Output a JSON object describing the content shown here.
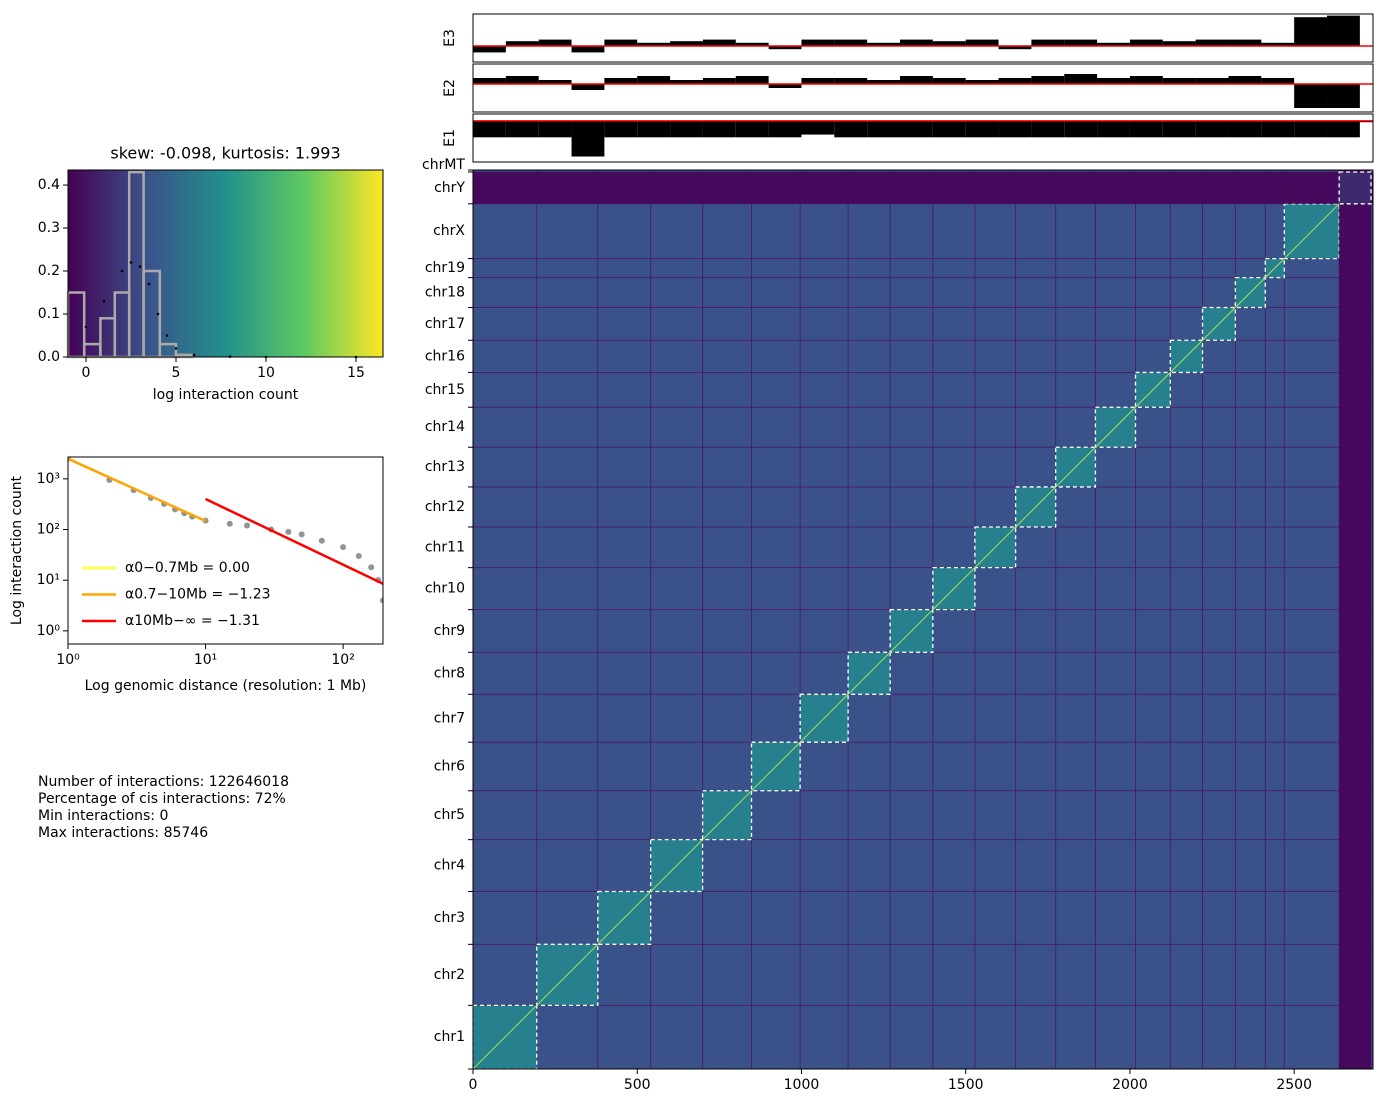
{
  "chart_data": [
    {
      "type": "histogram",
      "title": "skew: -0.098, kurtosis: 1.993",
      "xlabel": "log interaction count",
      "bins": [
        -1,
        -0.1,
        0.8,
        1.6,
        2.4,
        3.2,
        4.1,
        5.0,
        5.9
      ],
      "counts": [
        0.15,
        0.03,
        0.09,
        0.15,
        0.43,
        0.2,
        0.03,
        0.005
      ],
      "color": "#aaaaaa",
      "curve": {
        "x": [
          0,
          1,
          2,
          2.5,
          3,
          3.5,
          4,
          4.5,
          5,
          6,
          8,
          10,
          15
        ],
        "y": [
          0.07,
          0.13,
          0.2,
          0.22,
          0.21,
          0.17,
          0.1,
          0.05,
          0.02,
          0.005,
          0.001,
          0,
          0
        ],
        "color": "#000000"
      },
      "xlim": [
        -1,
        16.5
      ],
      "ylim": [
        0,
        0.435
      ],
      "xticks": [
        0,
        5,
        10,
        15
      ],
      "yticks": [
        {
          "value": 0,
          "label": "0.0"
        },
        0.1,
        0.2,
        0.3,
        0.4
      ]
    },
    {
      "type": "decay",
      "xlabel": "Log genomic distance (resolution: 1 Mb)",
      "ylabel": "Log interaction count",
      "xscale": "log",
      "yscale": "log",
      "xlim": [
        1,
        195
      ],
      "ylim": [
        0.55,
        2700
      ],
      "xticks": [
        {
          "value": 1,
          "label": "10⁰"
        },
        {
          "value": 10,
          "label": "10¹"
        },
        {
          "value": 100,
          "label": "10²"
        }
      ],
      "yticks": [
        {
          "value": 1,
          "label": "10⁰"
        },
        {
          "value": 10,
          "label": "10¹"
        },
        {
          "value": 100,
          "label": "10²"
        },
        {
          "value": 1000,
          "label": "10³"
        }
      ],
      "points": {
        "color": "#666666",
        "x": [
          1,
          2,
          3,
          4,
          5,
          6,
          7,
          8,
          10,
          15,
          20,
          30,
          40,
          50,
          70,
          100,
          130,
          160,
          180,
          195
        ],
        "y": [
          2500,
          950,
          600,
          420,
          320,
          250,
          210,
          180,
          150,
          130,
          120,
          100,
          90,
          80,
          60,
          45,
          30,
          18,
          10,
          4
        ]
      },
      "series": [
        {
          "name": "α0−0.7Mb = 0.00",
          "color": "#ffff33",
          "x": [],
          "values": []
        },
        {
          "name": "α0.7−10Mb = −1.23",
          "color": "#ffa500",
          "x": [
            1,
            10
          ],
          "values": [
            2500,
            147
          ]
        },
        {
          "name": "α10Mb−∞ = −1.31",
          "color": "#ff0000",
          "x": [
            10,
            195
          ],
          "values": [
            400,
            8.5
          ]
        }
      ]
    },
    {
      "type": "heatmap",
      "categories": [
        "chr1",
        "chr2",
        "chr3",
        "chr4",
        "chr5",
        "chr6",
        "chr7",
        "chr8",
        "chr9",
        "chr10",
        "chr11",
        "chr12",
        "chr13",
        "chr14",
        "chr15",
        "chr16",
        "chr17",
        "chr18",
        "chr19",
        "chrX",
        "chrY",
        "chrMT"
      ],
      "boundaries": [
        0,
        194,
        380,
        541,
        699,
        848,
        996,
        1142,
        1270,
        1400,
        1528,
        1652,
        1774,
        1895,
        2017,
        2123,
        2221,
        2321,
        2412,
        2470,
        2637,
        2734,
        2740
      ],
      "xlim": [
        0,
        2740
      ],
      "xticks": [
        0,
        500,
        1000,
        1500,
        2000,
        2500
      ]
    },
    {
      "type": "track",
      "label": "E3",
      "xlim": [
        0,
        2740
      ],
      "ylim": [
        -0.5,
        1
      ],
      "color": "#000000",
      "x": [
        0,
        100,
        200,
        300,
        400,
        500,
        600,
        700,
        800,
        900,
        1000,
        1100,
        1200,
        1300,
        1400,
        1500,
        1600,
        1700,
        1800,
        1900,
        2000,
        2100,
        2200,
        2300,
        2400,
        2500,
        2600,
        2700
      ],
      "values": [
        -0.2,
        0.15,
        0.2,
        -0.2,
        0.2,
        0.1,
        0.15,
        0.2,
        0.1,
        -0.1,
        0.2,
        0.2,
        0.1,
        0.2,
        0.15,
        0.2,
        -0.1,
        0.2,
        0.2,
        0.1,
        0.2,
        0.15,
        0.2,
        0.2,
        0.1,
        0.9,
        0.95,
        0
      ]
    },
    {
      "type": "track",
      "label": "E2",
      "xlim": [
        0,
        2740
      ],
      "ylim": [
        -1.4,
        1
      ],
      "color": "#000000",
      "x": [
        0,
        100,
        200,
        300,
        400,
        500,
        600,
        700,
        800,
        900,
        1000,
        1100,
        1200,
        1300,
        1400,
        1500,
        1600,
        1700,
        1800,
        1900,
        2000,
        2100,
        2200,
        2300,
        2400,
        2500,
        2600,
        2700
      ],
      "values": [
        0.3,
        0.4,
        0.2,
        -0.3,
        0.3,
        0.4,
        0.2,
        0.3,
        0.4,
        -0.2,
        0.3,
        0.3,
        0.2,
        0.4,
        0.3,
        0.2,
        0.3,
        0.4,
        0.5,
        0.3,
        0.4,
        0.3,
        0.3,
        0.4,
        0.3,
        -1.2,
        -1.2,
        0
      ]
    },
    {
      "type": "track",
      "label": "E1",
      "xlim": [
        0,
        2740
      ],
      "ylim": [
        -1.5,
        0.25
      ],
      "color": "#000000",
      "x": [
        0,
        100,
        200,
        300,
        400,
        500,
        600,
        700,
        800,
        900,
        1000,
        1100,
        1200,
        1300,
        1400,
        1500,
        1600,
        1700,
        1800,
        1900,
        2000,
        2100,
        2200,
        2300,
        2400,
        2500,
        2600,
        2700
      ],
      "values": [
        -0.6,
        -0.6,
        -0.6,
        -1.3,
        -0.6,
        -0.6,
        -0.6,
        -0.6,
        -0.6,
        -0.6,
        -0.5,
        -0.6,
        -0.6,
        -0.6,
        -0.6,
        -0.6,
        -0.6,
        -0.6,
        -0.6,
        -0.6,
        -0.6,
        -0.6,
        -0.6,
        -0.6,
        -0.6,
        -0.6,
        -0.6,
        -0.05
      ]
    }
  ],
  "stats": [
    "Number of interactions: 122646018",
    "Percentage of cis interactions: 72%",
    "Min interactions: 0",
    "Max interactions: 85746"
  ]
}
